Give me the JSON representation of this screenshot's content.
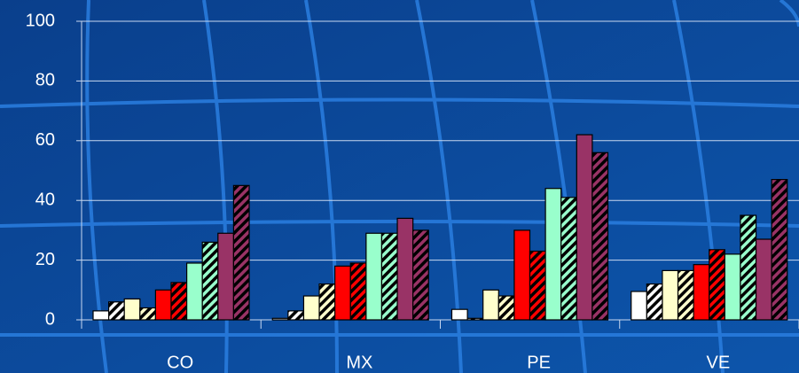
{
  "chart_data": {
    "type": "bar",
    "categories": [
      "CO",
      "MX",
      "PE",
      "VE"
    ],
    "series": [
      {
        "color": "#ffffff",
        "hatch": false,
        "values": [
          3,
          0.5,
          3.5,
          9.5
        ]
      },
      {
        "color": "#ffffff",
        "hatch": true,
        "values": [
          6,
          3,
          0.5,
          12
        ]
      },
      {
        "color": "#ffffcc",
        "hatch": false,
        "values": [
          7,
          8,
          10,
          16.5
        ]
      },
      {
        "color": "#ffffcc",
        "hatch": true,
        "values": [
          4,
          12,
          8,
          16.5
        ]
      },
      {
        "color": "#ff0000",
        "hatch": false,
        "values": [
          10,
          18,
          30,
          18.5
        ]
      },
      {
        "color": "#ff0000",
        "hatch": true,
        "values": [
          12.5,
          19,
          23,
          23.5
        ]
      },
      {
        "color": "#99ffcc",
        "hatch": false,
        "values": [
          19,
          29,
          44,
          22
        ]
      },
      {
        "color": "#99ffcc",
        "hatch": true,
        "values": [
          26,
          29,
          41,
          35
        ]
      },
      {
        "color": "#993366",
        "hatch": false,
        "values": [
          29,
          34,
          62,
          27
        ]
      },
      {
        "color": "#993366",
        "hatch": true,
        "values": [
          45,
          30,
          56,
          47
        ]
      }
    ],
    "ylim": [
      0,
      100
    ],
    "yticks": [
      0,
      20,
      40,
      60,
      80,
      100
    ],
    "grid": true
  }
}
